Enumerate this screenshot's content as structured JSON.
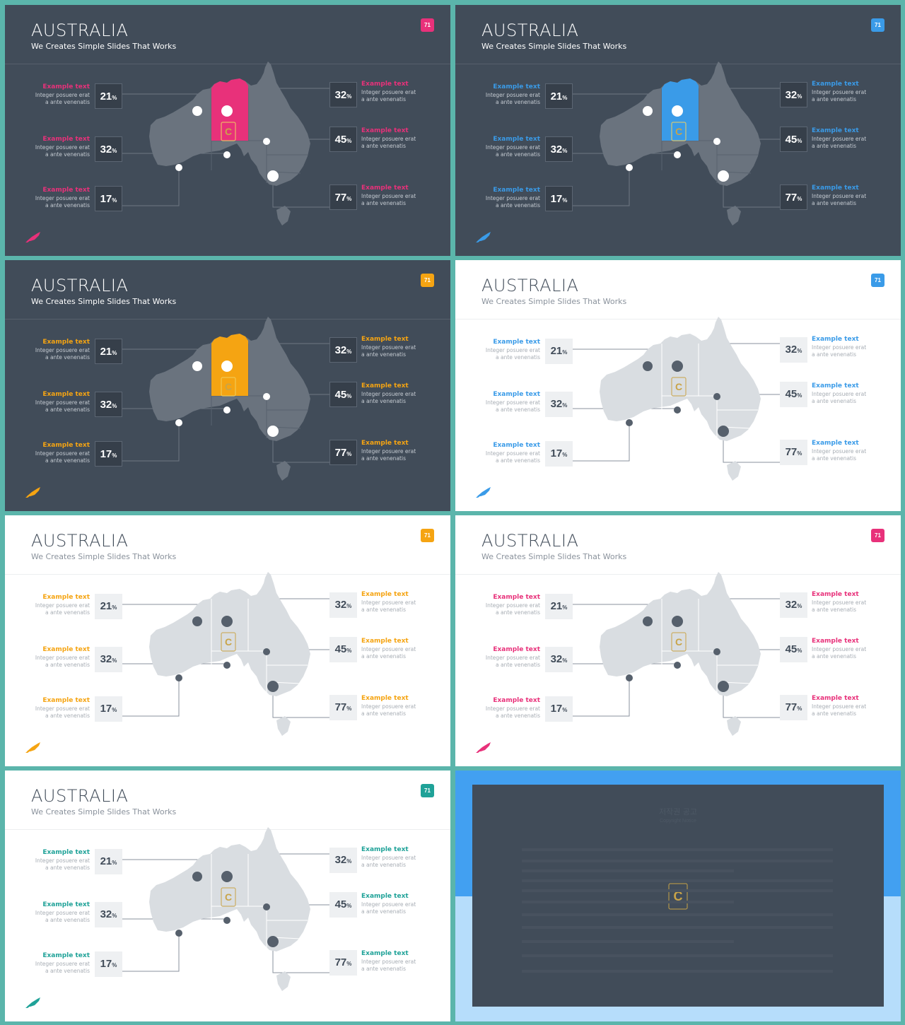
{
  "slides": [
    {
      "theme": "dark",
      "accent": "#e8317a",
      "highlight_state": true,
      "title": "AUSTRALIA",
      "subtitle": "We Creates Simple Slides That Works",
      "badge": "71",
      "labels_left": [
        {
          "title": "Example text",
          "desc": "Integer posuere erat a ante venenatis",
          "value": "21",
          "unit": "%"
        },
        {
          "title": "Example text",
          "desc": "Integer posuere erat a ante venenatis",
          "value": "32",
          "unit": "%"
        },
        {
          "title": "Example text",
          "desc": "Integer posuere erat a ante venenatis",
          "value": "17",
          "unit": "%"
        }
      ],
      "labels_right": [
        {
          "title": "Example text",
          "desc": "Integer posuere erat a ante venenatis",
          "value": "32",
          "unit": "%"
        },
        {
          "title": "Example text",
          "desc": "Integer posuere erat a ante venenatis",
          "value": "45",
          "unit": "%"
        },
        {
          "title": "Example text",
          "desc": "Integer posuere erat a ante venenatis",
          "value": "77",
          "unit": "%"
        }
      ]
    },
    {
      "theme": "dark",
      "accent": "#3a9be8",
      "highlight_state": true,
      "title": "AUSTRALIA",
      "subtitle": "We Creates Simple Slides That Works",
      "badge": "71",
      "labels_left": [
        {
          "title": "Example text",
          "desc": "Integer posuere erat a ante venenatis",
          "value": "21",
          "unit": "%"
        },
        {
          "title": "Example text",
          "desc": "Integer posuere erat a ante venenatis",
          "value": "32",
          "unit": "%"
        },
        {
          "title": "Example text",
          "desc": "Integer posuere erat a ante venenatis",
          "value": "17",
          "unit": "%"
        }
      ],
      "labels_right": [
        {
          "title": "Example text",
          "desc": "Integer posuere erat a ante venenatis",
          "value": "32",
          "unit": "%"
        },
        {
          "title": "Example text",
          "desc": "Integer posuere erat a ante venenatis",
          "value": "45",
          "unit": "%"
        },
        {
          "title": "Example text",
          "desc": "Integer posuere erat a ante venenatis",
          "value": "77",
          "unit": "%"
        }
      ]
    },
    {
      "theme": "dark",
      "accent": "#f5a412",
      "highlight_state": true,
      "title": "AUSTRALIA",
      "subtitle": "We Creates Simple Slides That Works",
      "badge": "71",
      "labels_left": [
        {
          "title": "Example text",
          "desc": "Integer posuere erat a ante venenatis",
          "value": "21",
          "unit": "%"
        },
        {
          "title": "Example text",
          "desc": "Integer posuere erat a ante venenatis",
          "value": "32",
          "unit": "%"
        },
        {
          "title": "Example text",
          "desc": "Integer posuere erat a ante venenatis",
          "value": "17",
          "unit": "%"
        }
      ],
      "labels_right": [
        {
          "title": "Example text",
          "desc": "Integer posuere erat a ante venenatis",
          "value": "32",
          "unit": "%"
        },
        {
          "title": "Example text",
          "desc": "Integer posuere erat a ante venenatis",
          "value": "45",
          "unit": "%"
        },
        {
          "title": "Example text",
          "desc": "Integer posuere erat a ante venenatis",
          "value": "77",
          "unit": "%"
        }
      ]
    },
    {
      "theme": "light",
      "accent": "#3a9be8",
      "highlight_state": false,
      "title": "AUSTRALIA",
      "subtitle": "We Creates Simple Slides That Works",
      "badge": "71",
      "labels_left": [
        {
          "title": "Example text",
          "desc": "Integer posuere erat a ante venenatis",
          "value": "21",
          "unit": "%"
        },
        {
          "title": "Example text",
          "desc": "Integer posuere erat a ante venenatis",
          "value": "32",
          "unit": "%"
        },
        {
          "title": "Example text",
          "desc": "Integer posuere erat a ante venenatis",
          "value": "17",
          "unit": "%"
        }
      ],
      "labels_right": [
        {
          "title": "Example text",
          "desc": "Integer posuere erat a ante venenatis",
          "value": "32",
          "unit": "%"
        },
        {
          "title": "Example text",
          "desc": "Integer posuere erat a ante venenatis",
          "value": "45",
          "unit": "%"
        },
        {
          "title": "Example text",
          "desc": "Integer posuere erat a ante venenatis",
          "value": "77",
          "unit": "%"
        }
      ]
    },
    {
      "theme": "light",
      "accent": "#f5a412",
      "highlight_state": false,
      "title": "AUSTRALIA",
      "subtitle": "We Creates Simple Slides That Works",
      "badge": "71",
      "labels_left": [
        {
          "title": "Example text",
          "desc": "Integer posuere erat a ante venenatis",
          "value": "21",
          "unit": "%"
        },
        {
          "title": "Example text",
          "desc": "Integer posuere erat a ante venenatis",
          "value": "32",
          "unit": "%"
        },
        {
          "title": "Example text",
          "desc": "Integer posuere erat a ante venenatis",
          "value": "17",
          "unit": "%"
        }
      ],
      "labels_right": [
        {
          "title": "Example text",
          "desc": "Integer posuere erat a ante venenatis",
          "value": "32",
          "unit": "%"
        },
        {
          "title": "Example text",
          "desc": "Integer posuere erat a ante venenatis",
          "value": "45",
          "unit": "%"
        },
        {
          "title": "Example text",
          "desc": "Integer posuere erat a ante venenatis",
          "value": "77",
          "unit": "%"
        }
      ]
    },
    {
      "theme": "light",
      "accent": "#e8317a",
      "highlight_state": false,
      "title": "AUSTRALIA",
      "subtitle": "We Creates Simple Slides That Works",
      "badge": "71",
      "labels_left": [
        {
          "title": "Example text",
          "desc": "Integer posuere erat a ante venenatis",
          "value": "21",
          "unit": "%"
        },
        {
          "title": "Example text",
          "desc": "Integer posuere erat a ante venenatis",
          "value": "32",
          "unit": "%"
        },
        {
          "title": "Example text",
          "desc": "Integer posuere erat a ante venenatis",
          "value": "17",
          "unit": "%"
        }
      ],
      "labels_right": [
        {
          "title": "Example text",
          "desc": "Integer posuere erat a ante venenatis",
          "value": "32",
          "unit": "%"
        },
        {
          "title": "Example text",
          "desc": "Integer posuere erat a ante venenatis",
          "value": "45",
          "unit": "%"
        },
        {
          "title": "Example text",
          "desc": "Integer posuere erat a ante venenatis",
          "value": "77",
          "unit": "%"
        }
      ]
    },
    {
      "theme": "light",
      "accent": "#1fa298",
      "highlight_state": false,
      "title": "AUSTRALIA",
      "subtitle": "We Creates Simple Slides That Works",
      "badge": "71",
      "labels_left": [
        {
          "title": "Example text",
          "desc": "Integer posuere erat a ante venenatis",
          "value": "21",
          "unit": "%"
        },
        {
          "title": "Example text",
          "desc": "Integer posuere erat a ante venenatis",
          "value": "32",
          "unit": "%"
        },
        {
          "title": "Example text",
          "desc": "Integer posuere erat a ante venenatis",
          "value": "17",
          "unit": "%"
        }
      ],
      "labels_right": [
        {
          "title": "Example text",
          "desc": "Integer posuere erat a ante venenatis",
          "value": "32",
          "unit": "%"
        },
        {
          "title": "Example text",
          "desc": "Integer posuere erat a ante venenatis",
          "value": "45",
          "unit": "%"
        },
        {
          "title": "Example text",
          "desc": "Integer posuere erat a ante venenatis",
          "value": "77",
          "unit": "%"
        }
      ]
    }
  ],
  "copyright": {
    "heading": "저작권 공고",
    "subheading": "Copyright Notice"
  },
  "colors": {
    "frame": "#5bb5ab",
    "dark_bg": "#414c59",
    "map_dark": "#6a737e",
    "map_light": "#d9dde1",
    "dot_light": "#56606c"
  }
}
